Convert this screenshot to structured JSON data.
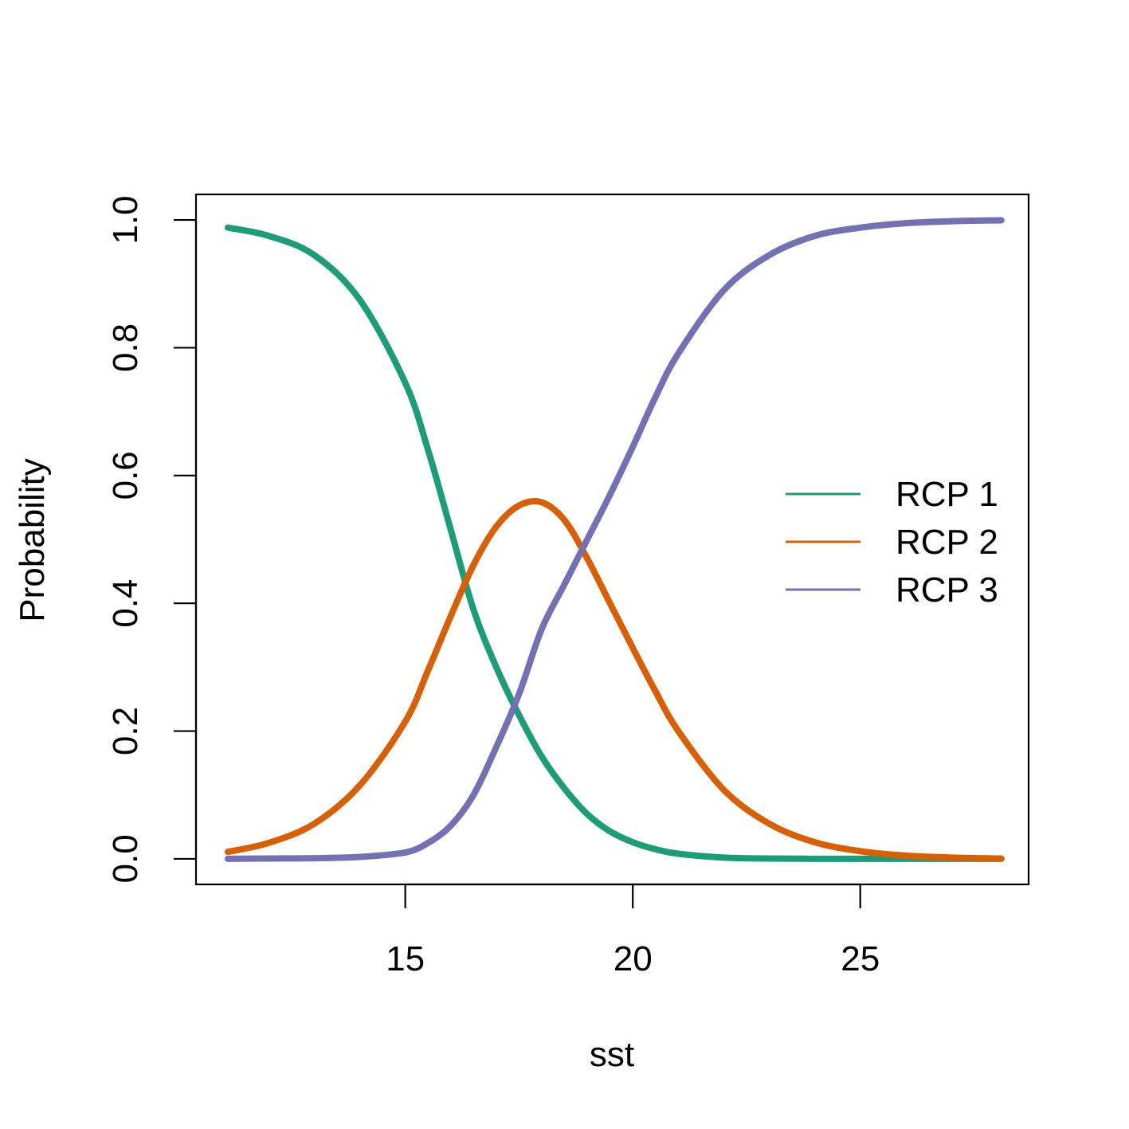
{
  "chart_data": {
    "type": "line",
    "title": "",
    "xlabel": "sst",
    "ylabel": "Probability",
    "xlim": [
      10.4,
      28.7
    ],
    "ylim": [
      -0.04,
      1.04
    ],
    "xticks": [
      15,
      20,
      25
    ],
    "xtick_labels": [
      "15",
      "20",
      "25"
    ],
    "yticks": [
      0.0,
      0.2,
      0.4,
      0.6,
      0.8,
      1.0
    ],
    "ytick_labels": [
      "0.0",
      "0.2",
      "0.4",
      "0.6",
      "0.8",
      "1.0"
    ],
    "grid": false,
    "legend_position": "right",
    "x": [
      11.1,
      12.0,
      13.0,
      14.0,
      15.0,
      15.5,
      16.0,
      16.5,
      17.0,
      17.5,
      18.0,
      18.5,
      19.0,
      19.5,
      20.0,
      20.5,
      21.0,
      22.0,
      23.0,
      24.0,
      25.0,
      26.0,
      27.0,
      28.1
    ],
    "series": [
      {
        "name": "RCP 1",
        "color": "#1b9e77",
        "values": [
          0.988,
          0.975,
          0.945,
          0.875,
          0.745,
          0.64,
          0.515,
          0.39,
          0.3,
          0.225,
          0.16,
          0.11,
          0.07,
          0.043,
          0.026,
          0.015,
          0.008,
          0.002,
          0.0005,
          0.0001,
          0.0,
          0.0,
          0.0,
          0.0
        ]
      },
      {
        "name": "RCP 2",
        "color": "#d95f02",
        "values": [
          0.011,
          0.025,
          0.055,
          0.115,
          0.215,
          0.295,
          0.38,
          0.46,
          0.52,
          0.553,
          0.558,
          0.53,
          0.47,
          0.4,
          0.33,
          0.262,
          0.2,
          0.108,
          0.055,
          0.026,
          0.012,
          0.005,
          0.002,
          0.0005
        ]
      },
      {
        "name": "RCP 3",
        "color": "#7570b3",
        "values": [
          0.0,
          0.0005,
          0.001,
          0.003,
          0.01,
          0.025,
          0.052,
          0.1,
          0.175,
          0.258,
          0.36,
          0.43,
          0.5,
          0.57,
          0.645,
          0.723,
          0.791,
          0.89,
          0.945,
          0.975,
          0.988,
          0.995,
          0.998,
          0.9995
        ]
      }
    ]
  }
}
